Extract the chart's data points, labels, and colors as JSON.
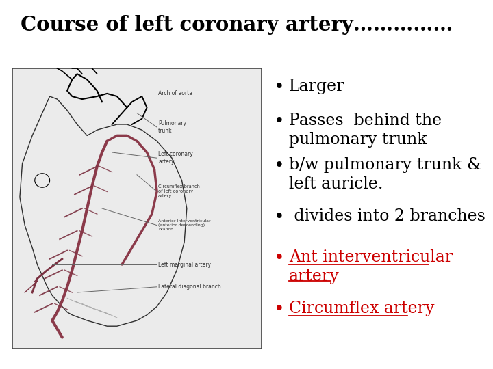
{
  "title": "Course of left coronary artery……………",
  "title_fontsize": 21,
  "title_bold": true,
  "background_color": "#ffffff",
  "image_bg": "#ebebeb",
  "bullet_items": [
    {
      "text": "Larger",
      "color": "#000000",
      "underline": false
    },
    {
      "text": "Passes  behind the\npulmonary trunk",
      "color": "#000000",
      "underline": false
    },
    {
      "text": "b/w pulmonary trunk &\nleft auricle.",
      "color": "#000000",
      "underline": false
    },
    {
      "text": " divides into 2 branches",
      "color": "#000000",
      "underline": false
    },
    {
      "text": "Ant interventricular\nartery",
      "color": "#cc0000",
      "underline": true
    },
    {
      "text": "Circumflex artery",
      "color": "#cc0000",
      "underline": true
    }
  ],
  "bullet_fontsize": 17,
  "artery_color": "#8b3a4a",
  "artery_color2": "#7a3040",
  "label_color": "#333333",
  "label_fontsize": 5.5,
  "line_color": "#666666"
}
